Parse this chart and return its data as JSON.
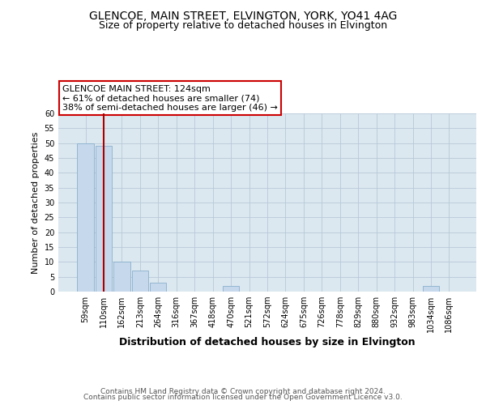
{
  "title1": "GLENCOE, MAIN STREET, ELVINGTON, YORK, YO41 4AG",
  "title2": "Size of property relative to detached houses in Elvington",
  "xlabel": "Distribution of detached houses by size in Elvington",
  "ylabel": "Number of detached properties",
  "categories": [
    "59sqm",
    "110sqm",
    "162sqm",
    "213sqm",
    "264sqm",
    "316sqm",
    "367sqm",
    "418sqm",
    "470sqm",
    "521sqm",
    "572sqm",
    "624sqm",
    "675sqm",
    "726sqm",
    "778sqm",
    "829sqm",
    "880sqm",
    "932sqm",
    "983sqm",
    "1034sqm",
    "1086sqm"
  ],
  "values": [
    50,
    49,
    10,
    7,
    3,
    0,
    0,
    0,
    2,
    0,
    0,
    0,
    0,
    0,
    0,
    0,
    0,
    0,
    0,
    2,
    0
  ],
  "bar_color": "#c5d8ec",
  "bar_edge_color": "#8ab0cc",
  "vline_x_index": 1.0,
  "vline_color": "#aa0000",
  "annotation_text": "GLENCOE MAIN STREET: 124sqm\n← 61% of detached houses are smaller (74)\n38% of semi-detached houses are larger (46) →",
  "annotation_box_color": "#ffffff",
  "annotation_box_edge": "#cc0000",
  "ylim": [
    0,
    60
  ],
  "yticks": [
    0,
    5,
    10,
    15,
    20,
    25,
    30,
    35,
    40,
    45,
    50,
    55,
    60
  ],
  "footer1": "Contains HM Land Registry data © Crown copyright and database right 2024.",
  "footer2": "Contains public sector information licensed under the Open Government Licence v3.0.",
  "bg_color": "#ffffff",
  "plot_bg_color": "#dce8f0",
  "grid_color": "#b8c8d8",
  "title1_fontsize": 10,
  "title2_fontsize": 9,
  "xlabel_fontsize": 9,
  "ylabel_fontsize": 8,
  "tick_fontsize": 7,
  "footer_fontsize": 6.5,
  "ann_fontsize": 8
}
